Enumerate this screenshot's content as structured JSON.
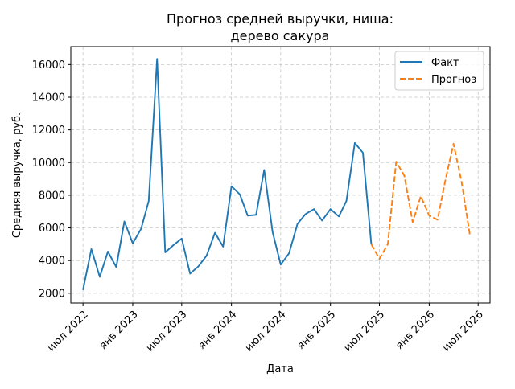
{
  "chart_data": {
    "type": "line",
    "title": "Прогноз средней выручки, ниша:\nдерево сакура",
    "xlabel": "Дата",
    "ylabel": "Средняя выручка, руб.",
    "x_axis_type": "date",
    "xlim": [
      "2022-05-17",
      "2026-08-14"
    ],
    "ylim": [
      1400,
      17100
    ],
    "x_ticks": [
      {
        "date": "2022-07-01",
        "label": "июл 2022"
      },
      {
        "date": "2023-01-01",
        "label": "янв 2023"
      },
      {
        "date": "2023-07-01",
        "label": "июл 2023"
      },
      {
        "date": "2024-01-01",
        "label": "янв 2024"
      },
      {
        "date": "2024-07-01",
        "label": "июл 2024"
      },
      {
        "date": "2025-01-01",
        "label": "янв 2025"
      },
      {
        "date": "2025-07-01",
        "label": "июл 2025"
      },
      {
        "date": "2026-01-01",
        "label": "янв 2026"
      },
      {
        "date": "2026-07-01",
        "label": "июл 2026"
      }
    ],
    "y_ticks": [
      2000,
      4000,
      6000,
      8000,
      10000,
      12000,
      14000,
      16000
    ],
    "grid": true,
    "legend": "top-right",
    "series": [
      {
        "name": "Факт",
        "color": "#1f77b4",
        "style": "solid",
        "points": [
          {
            "x": "2022-07-01",
            "y": 2200
          },
          {
            "x": "2022-08-01",
            "y": 4700
          },
          {
            "x": "2022-09-01",
            "y": 3000
          },
          {
            "x": "2022-10-01",
            "y": 4550
          },
          {
            "x": "2022-11-01",
            "y": 3600
          },
          {
            "x": "2022-12-01",
            "y": 6400
          },
          {
            "x": "2023-01-01",
            "y": 5050
          },
          {
            "x": "2023-02-01",
            "y": 5950
          },
          {
            "x": "2023-03-01",
            "y": 7650
          },
          {
            "x": "2023-04-01",
            "y": 16350
          },
          {
            "x": "2023-05-01",
            "y": 4500
          },
          {
            "x": "2023-06-01",
            "y": 4950
          },
          {
            "x": "2023-07-01",
            "y": 5350
          },
          {
            "x": "2023-08-01",
            "y": 3200
          },
          {
            "x": "2023-09-01",
            "y": 3650
          },
          {
            "x": "2023-10-01",
            "y": 4300
          },
          {
            "x": "2023-11-01",
            "y": 5700
          },
          {
            "x": "2023-12-01",
            "y": 4850
          },
          {
            "x": "2024-01-01",
            "y": 8550
          },
          {
            "x": "2024-02-01",
            "y": 8050
          },
          {
            "x": "2024-03-01",
            "y": 6750
          },
          {
            "x": "2024-04-01",
            "y": 6800
          },
          {
            "x": "2024-05-01",
            "y": 9550
          },
          {
            "x": "2024-06-01",
            "y": 5750
          },
          {
            "x": "2024-07-01",
            "y": 3750
          },
          {
            "x": "2024-08-01",
            "y": 4450
          },
          {
            "x": "2024-09-01",
            "y": 6250
          },
          {
            "x": "2024-10-01",
            "y": 6850
          },
          {
            "x": "2024-11-01",
            "y": 7150
          },
          {
            "x": "2024-12-01",
            "y": 6450
          },
          {
            "x": "2025-01-01",
            "y": 7150
          },
          {
            "x": "2025-02-01",
            "y": 6700
          },
          {
            "x": "2025-03-01",
            "y": 7650
          },
          {
            "x": "2025-04-01",
            "y": 11200
          },
          {
            "x": "2025-05-01",
            "y": 10600
          },
          {
            "x": "2025-06-01",
            "y": 5000
          }
        ]
      },
      {
        "name": "Прогноз",
        "color": "#ff7f0e",
        "style": "dashed",
        "points": [
          {
            "x": "2025-06-01",
            "y": 5000
          },
          {
            "x": "2025-07-01",
            "y": 4100
          },
          {
            "x": "2025-08-01",
            "y": 5000
          },
          {
            "x": "2025-09-01",
            "y": 10050
          },
          {
            "x": "2025-10-01",
            "y": 9200
          },
          {
            "x": "2025-11-01",
            "y": 6350
          },
          {
            "x": "2025-12-01",
            "y": 7950
          },
          {
            "x": "2026-01-01",
            "y": 6750
          },
          {
            "x": "2026-02-01",
            "y": 6500
          },
          {
            "x": "2026-03-01",
            "y": 8850
          },
          {
            "x": "2026-04-01",
            "y": 11150
          },
          {
            "x": "2026-05-01",
            "y": 8800
          },
          {
            "x": "2026-06-01",
            "y": 5500
          }
        ]
      }
    ]
  }
}
